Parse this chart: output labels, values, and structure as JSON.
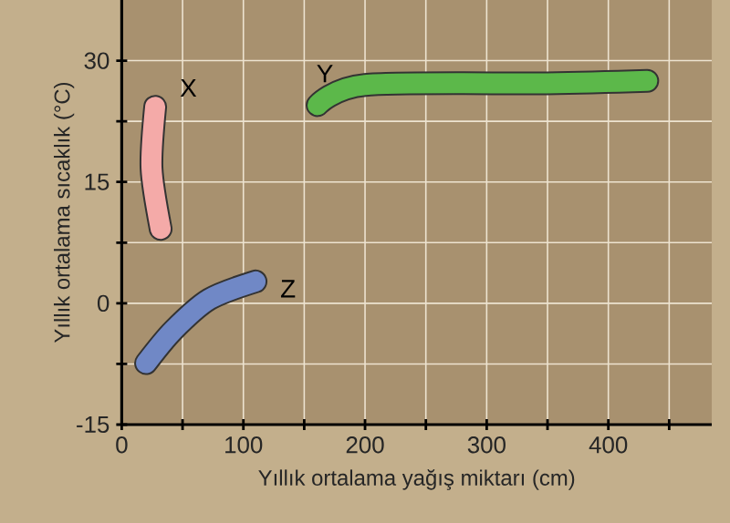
{
  "chart_data": {
    "type": "line",
    "xlabel": "Yıllık ortalama yağış miktarı (cm)",
    "ylabel": "Yıllık ortalama sıcaklık (°C)",
    "xlim": [
      0,
      485
    ],
    "ylim": [
      -15,
      37.5
    ],
    "xticks": [
      0,
      {
        "value": 50,
        "label": null
      },
      100,
      {
        "value": 150,
        "label": null
      },
      200,
      {
        "value": 250,
        "label": null
      },
      300,
      {
        "value": 350,
        "label": null
      },
      400,
      {
        "value": 450,
        "label": null
      }
    ],
    "yticks": [
      -15,
      {
        "value": -7.5,
        "label": null
      },
      0,
      {
        "value": 7.5,
        "label": null
      },
      15,
      {
        "value": 22.5,
        "label": null
      },
      30
    ],
    "grid": true,
    "marker": "none",
    "line_style": "solid",
    "series": [
      {
        "name": "X",
        "color": "#f4aaa8",
        "x": [
          27.5,
          24.5,
          32
        ],
        "values": [
          24.3,
          16.7,
          9.2
        ]
      },
      {
        "name": "Y",
        "color": "#5cb84a",
        "x": [
          161,
          200,
          350,
          432
        ],
        "values": [
          24.5,
          27,
          27.2,
          27.5
        ]
      },
      {
        "name": "Z",
        "color": "#7088c6",
        "x": [
          20,
          42,
          72,
          110
        ],
        "values": [
          -7.4,
          -3.4,
          0.5,
          2.7
        ]
      }
    ]
  }
}
